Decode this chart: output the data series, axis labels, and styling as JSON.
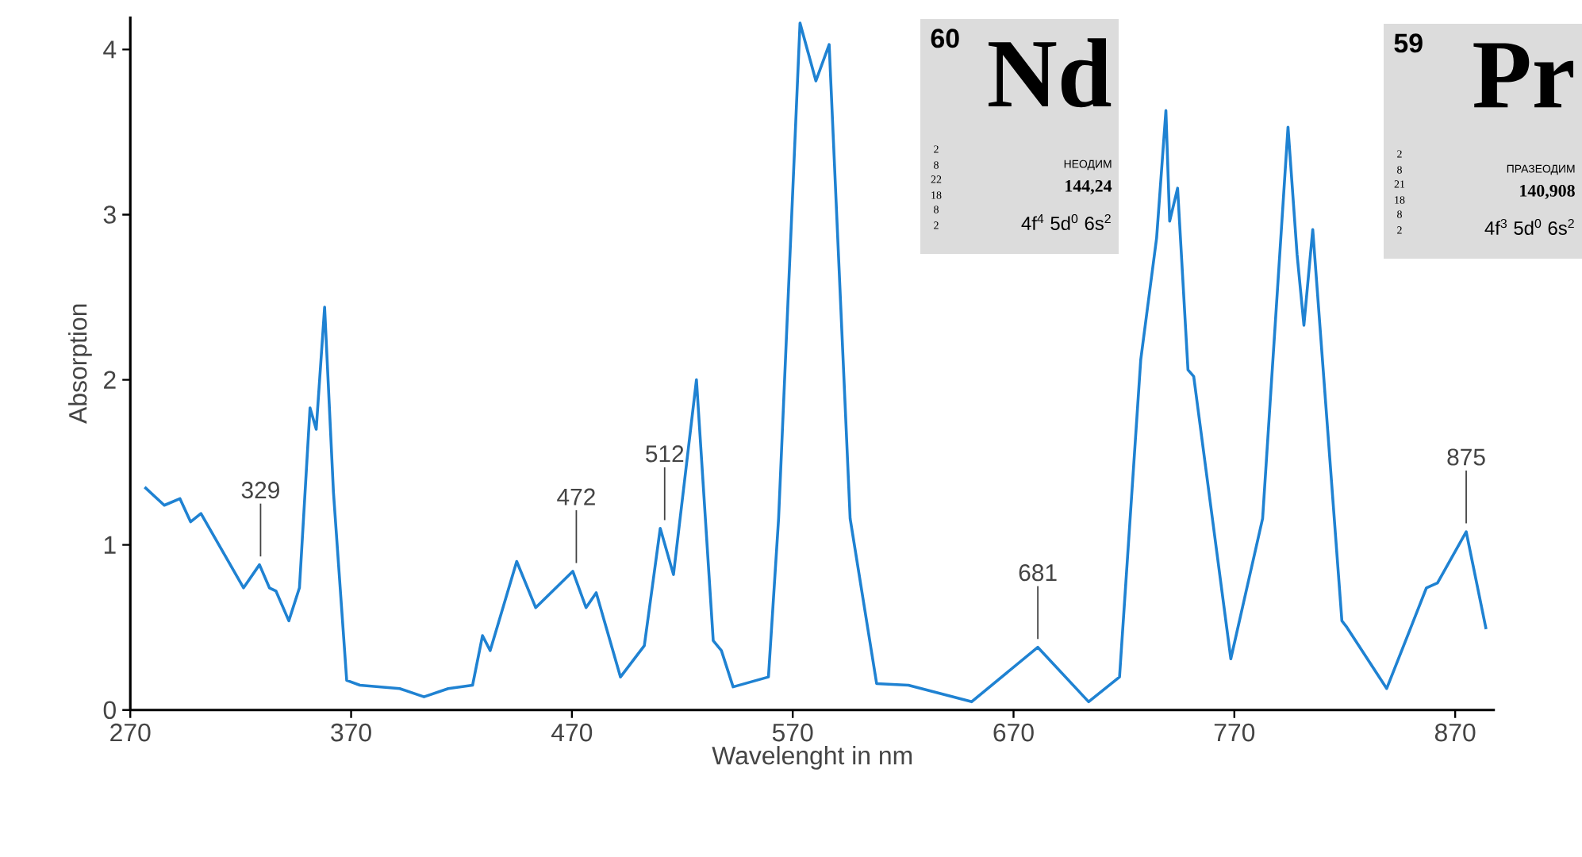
{
  "chart_data": {
    "type": "line",
    "color": "#1f82d2",
    "xlabel": "Wavelenght in nm",
    "ylabel": "Absorption",
    "xlim": [
      270,
      888
    ],
    "ylim": [
      0,
      4.2
    ],
    "xticks": [
      270,
      370,
      470,
      570,
      670,
      770,
      870
    ],
    "yticks": [
      0,
      1,
      2,
      3,
      4
    ],
    "x": [
      276.5,
      285.4,
      292.5,
      297.3,
      302,
      321.3,
      328.5,
      333,
      336,
      341.8,
      346.6,
      351.4,
      354.2,
      358,
      362,
      368,
      374,
      392,
      403,
      414,
      425,
      429.5,
      433,
      445,
      453.6,
      470.4,
      476.4,
      481,
      492,
      502.8,
      510,
      516,
      526.4,
      534,
      537.7,
      543,
      559,
      563.6,
      573.3,
      580.5,
      586.5,
      596,
      608,
      622.4,
      651,
      681,
      704,
      718,
      727.6,
      734.8,
      739,
      740.7,
      744.3,
      749,
      751.6,
      768.4,
      782.8,
      794.3,
      798.4,
      801.5,
      805.5,
      818.7,
      821,
      839,
      857,
      862,
      875,
      884
    ],
    "values": [
      1.35,
      1.24,
      1.28,
      1.14,
      1.19,
      0.74,
      0.88,
      0.74,
      0.72,
      0.54,
      0.74,
      1.83,
      1.7,
      2.44,
      1.32,
      0.18,
      0.15,
      0.13,
      0.08,
      0.13,
      0.15,
      0.45,
      0.36,
      0.9,
      0.62,
      0.84,
      0.62,
      0.71,
      0.2,
      0.39,
      1.1,
      0.82,
      2.0,
      0.42,
      0.36,
      0.14,
      0.2,
      1.16,
      4.16,
      3.81,
      4.03,
      1.16,
      0.16,
      0.15,
      0.05,
      0.38,
      0.05,
      0.2,
      2.12,
      2.86,
      3.63,
      2.96,
      3.16,
      2.06,
      2.02,
      0.31,
      1.16,
      3.53,
      2.76,
      2.33,
      2.91,
      0.54,
      0.5,
      0.13,
      0.74,
      0.77,
      1.08,
      0.49
    ],
    "annotations": [
      {
        "text": "329",
        "x": 329,
        "y": 0.88
      },
      {
        "text": "472",
        "x": 472,
        "y": 0.84
      },
      {
        "text": "512",
        "x": 512,
        "y": 1.1
      },
      {
        "text": "681",
        "x": 681,
        "y": 0.38
      },
      {
        "text": "875",
        "x": 875,
        "y": 1.08
      },
      "60",
      "Nd",
      "НЕОДИМ",
      "144,24",
      "4f$^{4}$ 5d$^{0}$ 6s$^{2}$",
      "2",
      "8",
      "22",
      "18",
      "8",
      "2",
      "59",
      "Pr",
      "ПРАЗЕОДИМ",
      "140,908",
      "4f$^{3}$ 5d$^{0}$ 6s$^{2}$",
      "2",
      "8",
      "21",
      "18",
      "8",
      "2"
    ]
  }
}
